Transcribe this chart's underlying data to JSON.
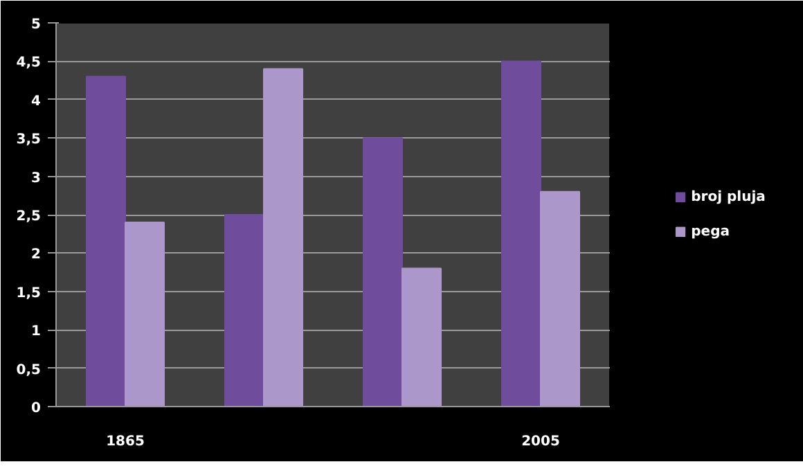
{
  "chart_data": {
    "type": "bar",
    "categories": [
      "1865",
      null,
      null,
      "2005"
    ],
    "series": [
      {
        "name": "broj pluja",
        "color": "#6f4d9c",
        "values": [
          4.3,
          2.5,
          3.5,
          4.5
        ]
      },
      {
        "name": "pega",
        "color": "#ab97c9",
        "values": [
          2.4,
          4.4,
          1.8,
          2.8
        ]
      }
    ],
    "ylim": [
      0,
      5
    ],
    "yticks": [
      0,
      {
        "value": 0.5,
        "label": "0,5"
      },
      1,
      {
        "value": 1.5,
        "label": "1,5"
      },
      2,
      {
        "value": 2.5,
        "label": "2,5"
      },
      3,
      {
        "value": 3.5,
        "label": "3,5"
      },
      4,
      {
        "value": 4.5,
        "label": "4,5"
      },
      5
    ],
    "grid": "y",
    "legend": "right"
  }
}
